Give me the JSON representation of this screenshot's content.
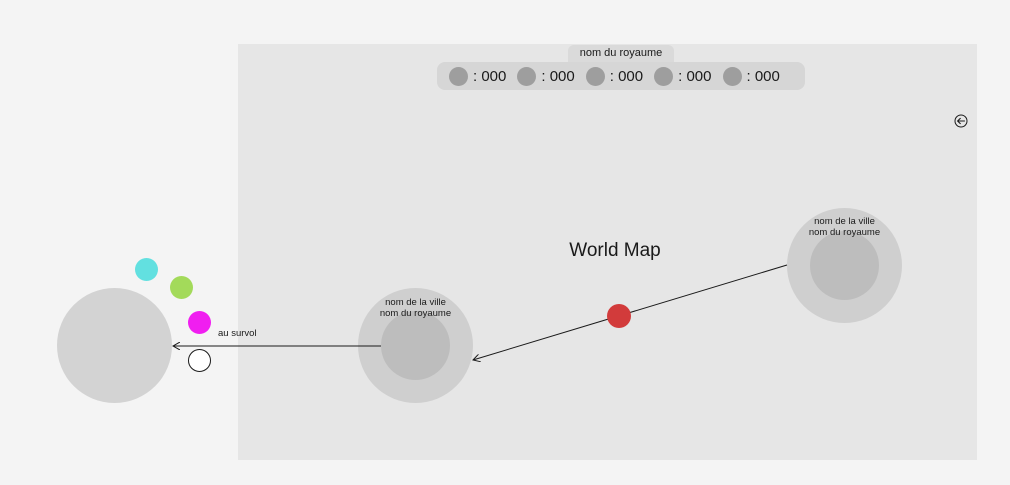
{
  "kingdom_tab": {
    "label": "nom du royaume"
  },
  "resources": [
    {
      "icon": "resource-icon",
      "value": ": 000"
    },
    {
      "icon": "resource-icon",
      "value": ": 000"
    },
    {
      "icon": "resource-icon",
      "value": ": 000"
    },
    {
      "icon": "resource-icon",
      "value": ": 000"
    },
    {
      "icon": "resource-icon",
      "value": ": 000"
    }
  ],
  "map": {
    "title": "World Map"
  },
  "cities": [
    {
      "line1": "nom de la ville",
      "line2": "nom du royaume"
    },
    {
      "line1": "nom de la ville",
      "line2": "nom du royaume"
    }
  ],
  "hover": {
    "label": "au survol"
  },
  "swatches": {
    "colors": [
      "#62e0e0",
      "#a3da5a",
      "#f01ef0",
      "#ffffff"
    ]
  },
  "marker": {
    "color": "#d23b3b"
  },
  "back_button": {
    "icon": "back-arrow-icon"
  }
}
